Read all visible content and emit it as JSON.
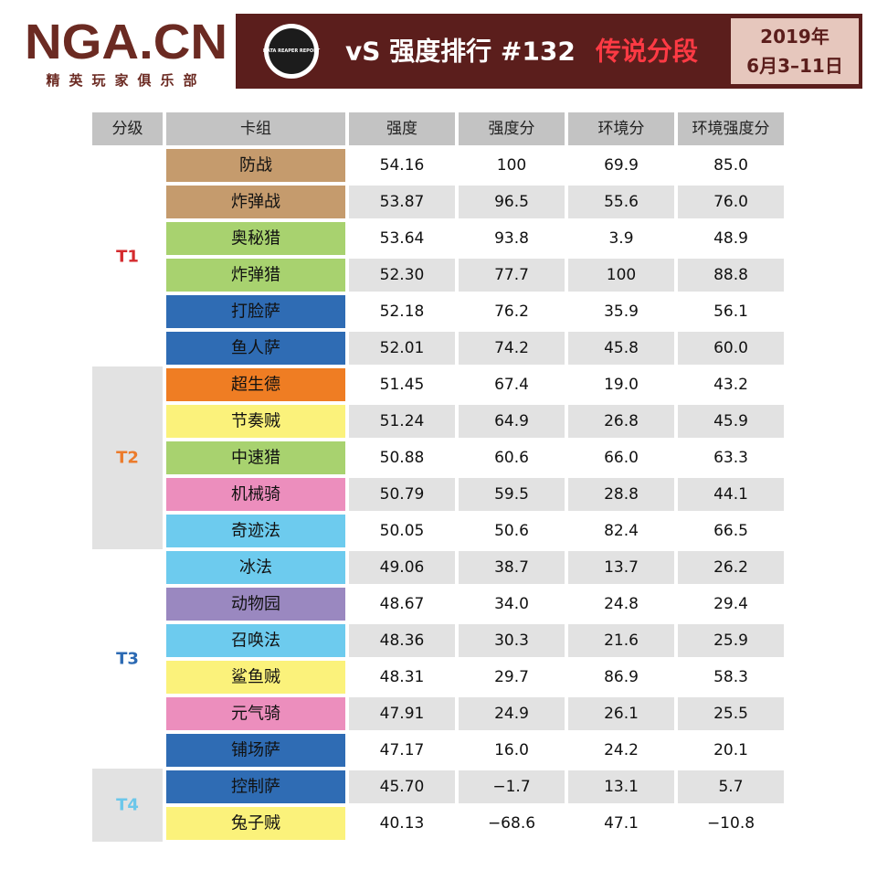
{
  "header": {
    "logo": "NGA.CN",
    "logo_subtitle": "精英玩家俱乐部",
    "badge": "DATA REAPER REPORT",
    "title": "vS 强度排行 #132",
    "title_highlight": "传说分段",
    "date_line1": "2019年",
    "date_line2": "6月3–11日"
  },
  "table": {
    "headers": [
      "分级",
      "卡组",
      "强度",
      "强度分",
      "环境分",
      "环境强度分"
    ],
    "tiers": [
      {
        "label": "T1",
        "color": "#d42a2e",
        "rows": [
          {
            "deck": "防战",
            "color": "#c59b6d",
            "cells": [
              "54.16",
              "100",
              "69.9",
              "85.0"
            ]
          },
          {
            "deck": "炸弹战",
            "color": "#c59b6d",
            "cells": [
              "53.87",
              "96.5",
              "55.6",
              "76.0"
            ]
          },
          {
            "deck": "奥秘猎",
            "color": "#a8d26f",
            "cells": [
              "53.64",
              "93.8",
              "3.9",
              "48.9"
            ]
          },
          {
            "deck": "炸弹猎",
            "color": "#a8d26f",
            "cells": [
              "52.30",
              "77.7",
              "100",
              "88.8"
            ]
          },
          {
            "deck": "打脸萨",
            "color": "#2f6cb4",
            "cells": [
              "52.18",
              "76.2",
              "35.9",
              "56.1"
            ]
          },
          {
            "deck": "鱼人萨",
            "color": "#2f6cb4",
            "cells": [
              "52.01",
              "74.2",
              "45.8",
              "60.0"
            ]
          }
        ]
      },
      {
        "label": "T2",
        "color": "#ec7b2b",
        "rows": [
          {
            "deck": "超生德",
            "color": "#ef7d23",
            "cells": [
              "51.45",
              "67.4",
              "19.0",
              "43.2"
            ]
          },
          {
            "deck": "节奏贼",
            "color": "#fbf27b",
            "cells": [
              "51.24",
              "64.9",
              "26.8",
              "45.9"
            ]
          },
          {
            "deck": "中速猎",
            "color": "#a8d26f",
            "cells": [
              "50.88",
              "60.6",
              "66.0",
              "63.3"
            ]
          },
          {
            "deck": "机械骑",
            "color": "#ec8ebd",
            "cells": [
              "50.79",
              "59.5",
              "28.8",
              "44.1"
            ]
          },
          {
            "deck": "奇迹法",
            "color": "#6dcbee",
            "cells": [
              "50.05",
              "50.6",
              "82.4",
              "66.5"
            ]
          }
        ]
      },
      {
        "label": "T3",
        "color": "#2c6ab3",
        "rows": [
          {
            "deck": "冰法",
            "color": "#6dcbee",
            "cells": [
              "49.06",
              "38.7",
              "13.7",
              "26.2"
            ]
          },
          {
            "deck": "动物园",
            "color": "#9a88c0",
            "cells": [
              "48.67",
              "34.0",
              "24.8",
              "29.4"
            ]
          },
          {
            "deck": "召唤法",
            "color": "#6dcbee",
            "cells": [
              "48.36",
              "30.3",
              "21.6",
              "25.9"
            ]
          },
          {
            "deck": "鲨鱼贼",
            "color": "#fbf27b",
            "cells": [
              "48.31",
              "29.7",
              "86.9",
              "58.3"
            ]
          },
          {
            "deck": "元气骑",
            "color": "#ec8ebd",
            "cells": [
              "47.91",
              "24.9",
              "26.1",
              "25.5"
            ]
          },
          {
            "deck": "铺场萨",
            "color": "#2f6cb4",
            "cells": [
              "47.17",
              "16.0",
              "24.2",
              "20.1"
            ]
          }
        ]
      },
      {
        "label": "T4",
        "color": "#6cc7ea",
        "rows": [
          {
            "deck": "控制萨",
            "color": "#2f6cb4",
            "cells": [
              "45.70",
              "−1.7",
              "13.1",
              "5.7"
            ]
          },
          {
            "deck": "兔子贼",
            "color": "#fbf27b",
            "cells": [
              "40.13",
              "−68.6",
              "47.1",
              "−10.8"
            ]
          }
        ]
      }
    ]
  }
}
